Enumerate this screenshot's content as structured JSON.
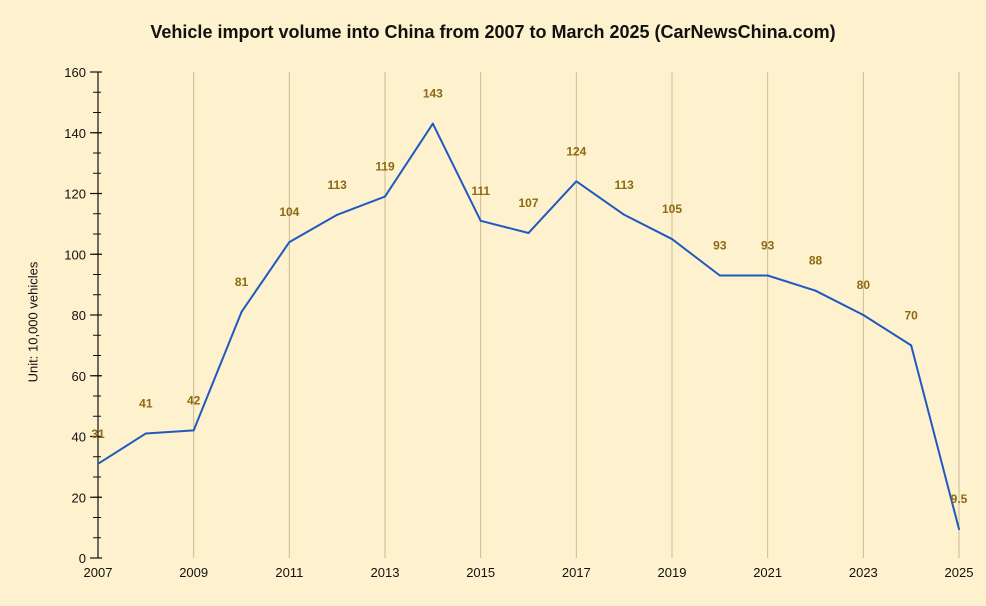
{
  "chart_data": {
    "type": "line",
    "title": "Vehicle import volume into China from 2007 to March 2025 (CarNewsChina.com)",
    "xlabel": "",
    "ylabel": "Unit: 10,000 vehicles",
    "x": [
      2007,
      2008,
      2009,
      2010,
      2011,
      2012,
      2013,
      2014,
      2015,
      2016,
      2017,
      2018,
      2019,
      2020,
      2021,
      2022,
      2023,
      2024,
      2025
    ],
    "values": [
      31,
      41,
      42,
      81,
      104,
      113,
      119,
      143,
      111,
      107,
      124,
      113,
      105,
      93,
      93,
      88,
      80,
      70,
      9.5
    ],
    "data_labels": [
      "31",
      "41",
      "42",
      "81",
      "104",
      "113",
      "119",
      "143",
      "111",
      "107",
      "124",
      "113",
      "105",
      "93",
      "93",
      "88",
      "80",
      "70",
      "9.5"
    ],
    "xticks": [
      "2007",
      "2009",
      "2011",
      "2013",
      "2015",
      "2017",
      "2019",
      "2021",
      "2023",
      "2025"
    ],
    "yticks": [
      "0",
      "20",
      "40",
      "60",
      "80",
      "100",
      "120",
      "140",
      "160"
    ],
    "ylim": [
      0,
      160
    ],
    "xlim": [
      2007,
      2025
    ],
    "grid": "vertical at labeled x ticks",
    "legend": "none",
    "colors": {
      "line": "#2059c0",
      "label": "#8c6a12",
      "grid": "#cbbb94",
      "axis": "#111111"
    }
  }
}
